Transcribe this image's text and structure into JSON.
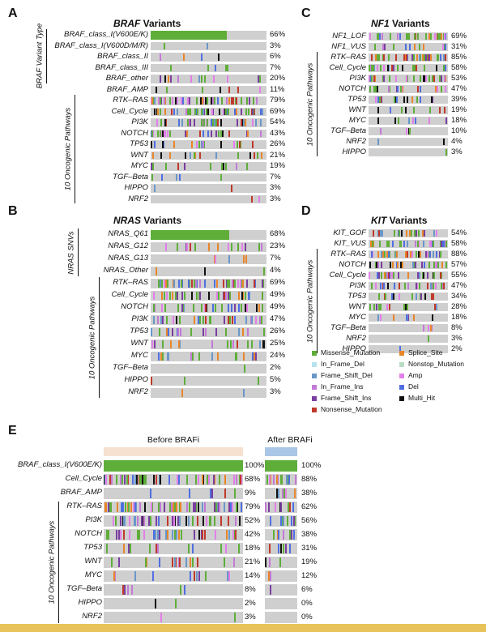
{
  "legend": {
    "items": [
      {
        "label": "Missense_Mutation",
        "color": "#5fae3a"
      },
      {
        "label": "Splice_Site",
        "color": "#e8862a"
      },
      {
        "label": "In_Frame_Del",
        "color": "#b7e2f0"
      },
      {
        "label": "Nonstop_Mutation",
        "color": "#b8dcc4"
      },
      {
        "label": "Frame_Shift_Del",
        "color": "#6a97c9"
      },
      {
        "label": "Amp",
        "color": "#e27fe8"
      },
      {
        "label": "In_Frame_Ins",
        "color": "#c37ad6"
      },
      {
        "label": "Del",
        "color": "#4f6fe0"
      },
      {
        "label": "Frame_Shift_Ins",
        "color": "#7a3fa0"
      },
      {
        "label": "Multi_Hit",
        "color": "#111111"
      },
      {
        "label": "Nonsense_Mutation",
        "color": "#c0392b"
      }
    ]
  },
  "panels": [
    {
      "letter": "A",
      "gene": "BRAF",
      "title_suffix": " Variants",
      "group1_label": "BRAF Variant Type",
      "group2_label": "10 Oncogenic Pathways",
      "rows": [
        {
          "label": "BRAF_class_I(V600E/K)",
          "pct": "66%",
          "group": 1
        },
        {
          "label": "BRAF_class_I(V600D/M/R)",
          "pct": "3%",
          "group": 1
        },
        {
          "label": "BRAF_class_II",
          "pct": "6%",
          "group": 1
        },
        {
          "label": "BRAF_class_III",
          "pct": "7%",
          "group": 1
        },
        {
          "label": "BRAF_other",
          "pct": "20%",
          "group": 1
        },
        {
          "label": "BRAF_AMP",
          "pct": "11%",
          "group": 0
        },
        {
          "label": "RTK–RAS",
          "pct": "79%",
          "group": 2
        },
        {
          "label": "Cell_Cycle",
          "pct": "69%",
          "group": 2
        },
        {
          "label": "PI3K",
          "pct": "54%",
          "group": 2
        },
        {
          "label": "NOTCH",
          "pct": "43%",
          "group": 2
        },
        {
          "label": "TP53",
          "pct": "26%",
          "group": 2
        },
        {
          "label": "WNT",
          "pct": "21%",
          "group": 2
        },
        {
          "label": "MYC",
          "pct": "19%",
          "group": 2
        },
        {
          "label": "TGF–Beta",
          "pct": "7%",
          "group": 2
        },
        {
          "label": "HIPPO",
          "pct": "3%",
          "group": 2
        },
        {
          "label": "NRF2",
          "pct": "3%",
          "group": 2
        }
      ]
    },
    {
      "letter": "B",
      "gene": "NRAS",
      "title_suffix": " Variants",
      "group1_label": "NRAS SNVs",
      "group2_label": "10 Oncogenic Pathways",
      "rows": [
        {
          "label": "NRAS_Q61",
          "pct": "68%",
          "group": 1
        },
        {
          "label": "NRAS_G12",
          "pct": "23%",
          "group": 1
        },
        {
          "label": "NRAS_G13",
          "pct": "7%",
          "group": 1
        },
        {
          "label": "NRAS_Other",
          "pct": "4%",
          "group": 1
        },
        {
          "label": "RTK–RAS",
          "pct": "69%",
          "group": 2
        },
        {
          "label": "Cell_Cycle",
          "pct": "49%",
          "group": 2
        },
        {
          "label": "NOTCH",
          "pct": "49%",
          "group": 2
        },
        {
          "label": "PI3K",
          "pct": "47%",
          "group": 2
        },
        {
          "label": "TP53",
          "pct": "26%",
          "group": 2
        },
        {
          "label": "WNT",
          "pct": "25%",
          "group": 2
        },
        {
          "label": "MYC",
          "pct": "24%",
          "group": 2
        },
        {
          "label": "TGF–Beta",
          "pct": "2%",
          "group": 2
        },
        {
          "label": "HIPPO",
          "pct": "5%",
          "group": 2
        },
        {
          "label": "NRF2",
          "pct": "3%",
          "group": 2
        }
      ]
    },
    {
      "letter": "C",
      "gene": "NF1",
      "title_suffix": " Variants",
      "group1_label": "",
      "group2_label": "10 Oncogenic Pathways",
      "rows": [
        {
          "label": "NF1_LOF",
          "pct": "69%",
          "group": 0
        },
        {
          "label": "NF1_VUS",
          "pct": "31%",
          "group": 0
        },
        {
          "label": "RTK–RAS",
          "pct": "85%",
          "group": 2
        },
        {
          "label": "Cell_Cycle",
          "pct": "58%",
          "group": 2
        },
        {
          "label": "PI3K",
          "pct": "53%",
          "group": 2
        },
        {
          "label": "NOTCH",
          "pct": "47%",
          "group": 2
        },
        {
          "label": "TP53",
          "pct": "39%",
          "group": 2
        },
        {
          "label": "WNT",
          "pct": "19%",
          "group": 2
        },
        {
          "label": "MYC",
          "pct": "18%",
          "group": 2
        },
        {
          "label": "TGF–Beta",
          "pct": "10%",
          "group": 2
        },
        {
          "label": "NRF2",
          "pct": "4%",
          "group": 2
        },
        {
          "label": "HIPPO",
          "pct": "3%",
          "group": 2
        }
      ]
    },
    {
      "letter": "D",
      "gene": "KIT",
      "title_suffix": " Variants",
      "group1_label": "",
      "group2_label": "10 Oncogenic Pathways",
      "rows": [
        {
          "label": "KIT_GOF",
          "pct": "54%",
          "group": 0
        },
        {
          "label": "KIT_VUS",
          "pct": "58%",
          "group": 0
        },
        {
          "label": "RTK–RAS",
          "pct": "88%",
          "group": 2
        },
        {
          "label": "NOTCH",
          "pct": "57%",
          "group": 2
        },
        {
          "label": "Cell_Cycle",
          "pct": "55%",
          "group": 2
        },
        {
          "label": "PI3K",
          "pct": "47%",
          "group": 2
        },
        {
          "label": "TP53",
          "pct": "34%",
          "group": 2
        },
        {
          "label": "WNT",
          "pct": "28%",
          "group": 2
        },
        {
          "label": "MYC",
          "pct": "18%",
          "group": 2
        },
        {
          "label": "TGF–Beta",
          "pct": "8%",
          "group": 2
        },
        {
          "label": "NRF2",
          "pct": "3%",
          "group": 2
        },
        {
          "label": "HIPPO",
          "pct": "2%",
          "group": 2
        }
      ]
    },
    {
      "letter": "E",
      "gene": "",
      "title_suffix": "",
      "before_label": "Before BRAFi",
      "after_label": "After BRAFi",
      "group2_label": "10 Oncogenic Pathways",
      "rows": [
        {
          "label": "BRAF_class_I(V600E/K)",
          "pct": "100%",
          "pct_after": "100%",
          "group": 0
        },
        {
          "label": "Cell_Cycle",
          "pct": "68%",
          "pct_after": "88%",
          "group": 0
        },
        {
          "label": "BRAF_AMP",
          "pct": "9%",
          "pct_after": "38%",
          "group": 0
        },
        {
          "label": "RTK–RAS",
          "pct": "79%",
          "pct_after": "62%",
          "group": 2
        },
        {
          "label": "PI3K",
          "pct": "52%",
          "pct_after": "56%",
          "group": 2
        },
        {
          "label": "NOTCH",
          "pct": "42%",
          "pct_after": "38%",
          "group": 2
        },
        {
          "label": "TP53",
          "pct": "18%",
          "pct_after": "31%",
          "group": 2
        },
        {
          "label": "WNT",
          "pct": "21%",
          "pct_after": "19%",
          "group": 2
        },
        {
          "label": "MYC",
          "pct": "14%",
          "pct_after": "12%",
          "group": 2
        },
        {
          "label": "TGF–Beta",
          "pct": "8%",
          "pct_after": "6%",
          "group": 2
        },
        {
          "label": "HIPPO",
          "pct": "2%",
          "pct_after": "0%",
          "group": 2
        },
        {
          "label": "NRF2",
          "pct": "3%",
          "pct_after": "0%",
          "group": 2
        }
      ]
    }
  ],
  "chart_data": [
    {
      "type": "heatmap",
      "title": "BRAF Variants",
      "categories": [
        "BRAF_class_I(V600E/K)",
        "BRAF_class_I(V600D/M/R)",
        "BRAF_class_II",
        "BRAF_class_III",
        "BRAF_other",
        "BRAF_AMP",
        "RTK–RAS",
        "Cell_Cycle",
        "PI3K",
        "NOTCH",
        "TP53",
        "WNT",
        "MYC",
        "TGF–Beta",
        "HIPPO",
        "NRF2"
      ],
      "values": [
        66,
        3,
        6,
        7,
        20,
        11,
        79,
        69,
        54,
        43,
        26,
        21,
        19,
        7,
        3,
        3
      ]
    },
    {
      "type": "heatmap",
      "title": "NRAS Variants",
      "categories": [
        "NRAS_Q61",
        "NRAS_G12",
        "NRAS_G13",
        "NRAS_Other",
        "RTK–RAS",
        "Cell_Cycle",
        "NOTCH",
        "PI3K",
        "TP53",
        "WNT",
        "MYC",
        "TGF–Beta",
        "HIPPO",
        "NRF2"
      ],
      "values": [
        68,
        23,
        7,
        4,
        69,
        49,
        49,
        47,
        26,
        25,
        24,
        2,
        5,
        3
      ]
    },
    {
      "type": "heatmap",
      "title": "NF1 Variants",
      "categories": [
        "NF1_LOF",
        "NF1_VUS",
        "RTK–RAS",
        "Cell_Cycle",
        "PI3K",
        "NOTCH",
        "TP53",
        "WNT",
        "MYC",
        "TGF–Beta",
        "NRF2",
        "HIPPO"
      ],
      "values": [
        69,
        31,
        85,
        58,
        53,
        47,
        39,
        19,
        18,
        10,
        4,
        3
      ]
    },
    {
      "type": "heatmap",
      "title": "KIT Variants",
      "categories": [
        "KIT_GOF",
        "KIT_VUS",
        "RTK–RAS",
        "NOTCH",
        "Cell_Cycle",
        "PI3K",
        "TP53",
        "WNT",
        "MYC",
        "TGF–Beta",
        "NRF2",
        "HIPPO"
      ],
      "values": [
        54,
        58,
        88,
        57,
        55,
        47,
        34,
        28,
        18,
        8,
        3,
        2
      ]
    },
    {
      "type": "heatmap",
      "title": "",
      "categories": [
        "BRAF_class_I(V600E/K)",
        "Cell_Cycle",
        "BRAF_AMP",
        "RTK–RAS",
        "PI3K",
        "NOTCH",
        "TP53",
        "WNT",
        "MYC",
        "TGF–Beta",
        "HIPPO",
        "NRF2"
      ],
      "series": [
        {
          "name": "Before BRAFi",
          "values": [
            100,
            68,
            9,
            79,
            52,
            42,
            18,
            21,
            14,
            8,
            2,
            3
          ]
        },
        {
          "name": "After BRAFi",
          "values": [
            100,
            88,
            38,
            62,
            56,
            38,
            31,
            19,
            12,
            6,
            0,
            0
          ]
        }
      ]
    }
  ]
}
